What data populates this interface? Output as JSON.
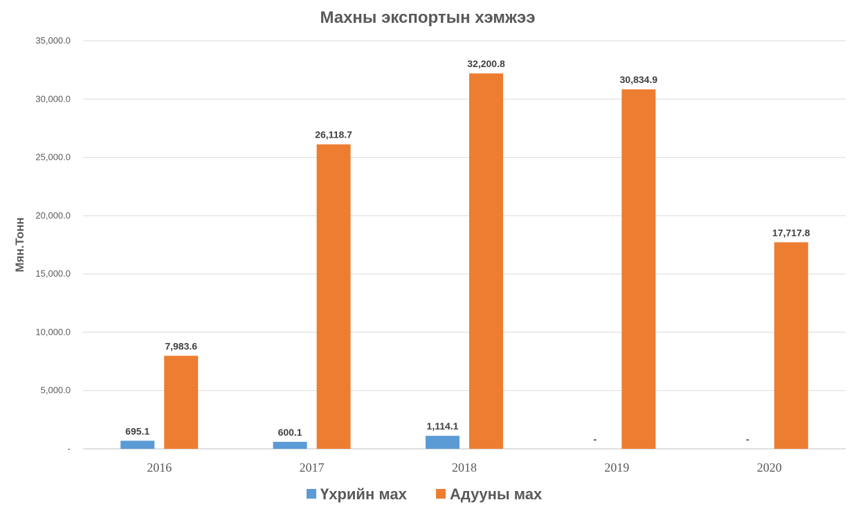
{
  "chart_data": {
    "type": "bar",
    "title": "Махны экспортын хэмжээ",
    "ylabel": "Мян.Тонн",
    "xlabel": "",
    "categories": [
      "2016",
      "2017",
      "2018",
      "2019",
      "2020"
    ],
    "ylim": [
      0,
      35000
    ],
    "yticks": [
      0,
      5000,
      10000,
      15000,
      20000,
      25000,
      30000,
      35000
    ],
    "ytick_labels": [
      "-",
      "5,000.0",
      "10,000.0",
      "15,000.0",
      "20,000.0",
      "25,000.0",
      "30,000.0",
      "35,000.0"
    ],
    "grid": true,
    "legend_position": "bottom",
    "series": [
      {
        "name": "Үхрийн мах",
        "color": "#5B9BD5",
        "values": [
          695.1,
          600.1,
          1114.1,
          0,
          0
        ],
        "labels": [
          "695.1",
          "600.1",
          "1,114.1",
          "-",
          "-"
        ]
      },
      {
        "name": "Адууны мах",
        "color": "#ED7D31",
        "values": [
          7983.6,
          26118.7,
          32200.8,
          30834.9,
          17717.8
        ],
        "labels": [
          "7,983.6",
          "26,118.7",
          "32,200.8",
          "30,834.9",
          "17,717.8"
        ]
      }
    ]
  }
}
